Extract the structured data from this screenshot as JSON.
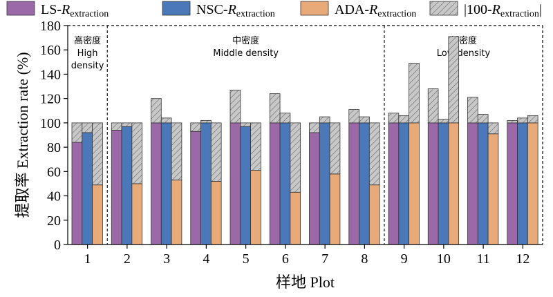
{
  "chart_data": {
    "type": "bar",
    "xlabel": "样地 Plot",
    "ylabel": "提取率 Extraction rate (%)",
    "ylim": [
      0,
      180
    ],
    "yticks": [
      0,
      20,
      40,
      60,
      80,
      100,
      120,
      140,
      160,
      180
    ],
    "grid": false,
    "legend_position": "top",
    "categories": [
      "1",
      "2",
      "3",
      "4",
      "5",
      "6",
      "7",
      "8",
      "9",
      "10",
      "11",
      "12"
    ],
    "series": [
      {
        "name_main": "LS-",
        "name_sub": "extraction",
        "color": "#9B68A8",
        "values": [
          84,
          94,
          100,
          93,
          100,
          100,
          92,
          100,
          100,
          100,
          100,
          100
        ],
        "abs_diff": [
          16,
          6,
          20,
          7,
          27,
          24,
          8,
          11,
          8,
          28,
          21,
          2
        ]
      },
      {
        "name_main": "NSC-",
        "name_sub": "extraction",
        "color": "#4A78B8",
        "values": [
          92,
          97,
          100,
          100,
          97,
          100,
          100,
          100,
          100,
          100,
          100,
          100
        ],
        "abs_diff": [
          8,
          3,
          4,
          2,
          3,
          8,
          5,
          5,
          6,
          3,
          7,
          4
        ]
      },
      {
        "name_main": "ADA-",
        "name_sub": "extraction",
        "color": "#E8AA78",
        "values": [
          49,
          50,
          53,
          52,
          61,
          43,
          58,
          49,
          100,
          100,
          91,
          100
        ],
        "abs_diff": [
          51,
          50,
          47,
          48,
          39,
          57,
          42,
          51,
          49,
          71,
          9,
          6
        ]
      }
    ],
    "diff_legend": {
      "prefix": "|100-",
      "sub": "extraction",
      "suffix": "|",
      "color": "#c8c8c8"
    },
    "zones": [
      {
        "cn": "高密度",
        "en1": "High",
        "en2": "density",
        "from": 0,
        "to": 0
      },
      {
        "cn": "中密度",
        "en1": "Middle density",
        "en2": "",
        "from": 1,
        "to": 7
      },
      {
        "cn": "低密度",
        "en1": "Low density",
        "en2": "",
        "from": 8,
        "to": 11
      }
    ]
  }
}
